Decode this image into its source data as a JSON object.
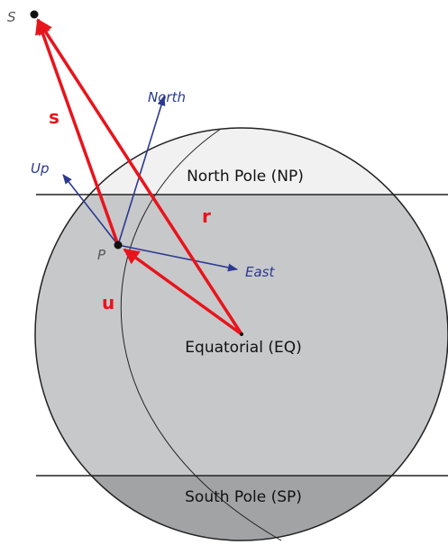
{
  "points": {
    "sun": "S",
    "position": "P"
  },
  "directions": {
    "up": "Up",
    "north": "North",
    "east": "East"
  },
  "vectors": {
    "s": "s",
    "r": "r",
    "u": "u"
  },
  "regions": {
    "north": "North Pole (NP)",
    "equatorial": "Equatorial (EQ)",
    "south": "South Pole (SP)"
  }
}
